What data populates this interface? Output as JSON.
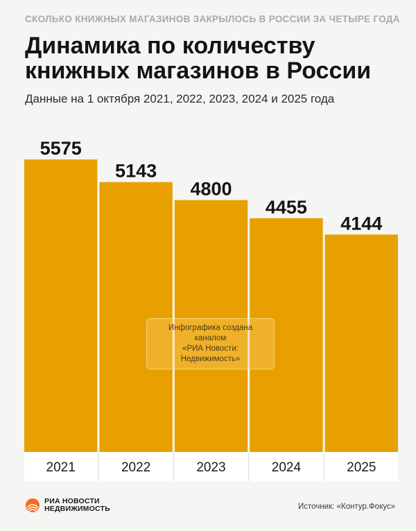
{
  "header": {
    "kicker": "СКОЛЬКО КНИЖНЫХ МАГАЗИНОВ ЗАКРЫЛОСЬ В РОССИИ ЗА ЧЕТЫРЕ ГОДА",
    "title": "Динамика по количеству книжных магазинов в России",
    "subtitle": "Данные на 1 октября 2021, 2022, 2023, 2024 и 2025 года"
  },
  "watermark": {
    "line1": "Инфографика создана каналом",
    "line2": "«РИА Новости: Недвижимость»"
  },
  "footer": {
    "logo_line1": "РИА НОВОСТИ",
    "logo_line2": "НЕДВИЖИМОСТЬ",
    "source": "Источник: «Контур.Фокус»"
  },
  "colors": {
    "bar": "#e8a000",
    "background": "#f5f5f3",
    "logo_accent": "#f36c21"
  },
  "chart_data": {
    "type": "bar",
    "title": "Динамика по количеству книжных магазинов в России",
    "subtitle": "Данные на 1 октября 2021, 2022, 2023, 2024 и 2025 года",
    "categories": [
      "2021",
      "2022",
      "2023",
      "2024",
      "2025"
    ],
    "values": [
      5575,
      5143,
      4800,
      4455,
      4144
    ],
    "data_labels": [
      "5575",
      "5143",
      "4800",
      "4455",
      "4144"
    ],
    "xlabel": "",
    "ylabel": "",
    "grid": false,
    "legend": "none"
  }
}
